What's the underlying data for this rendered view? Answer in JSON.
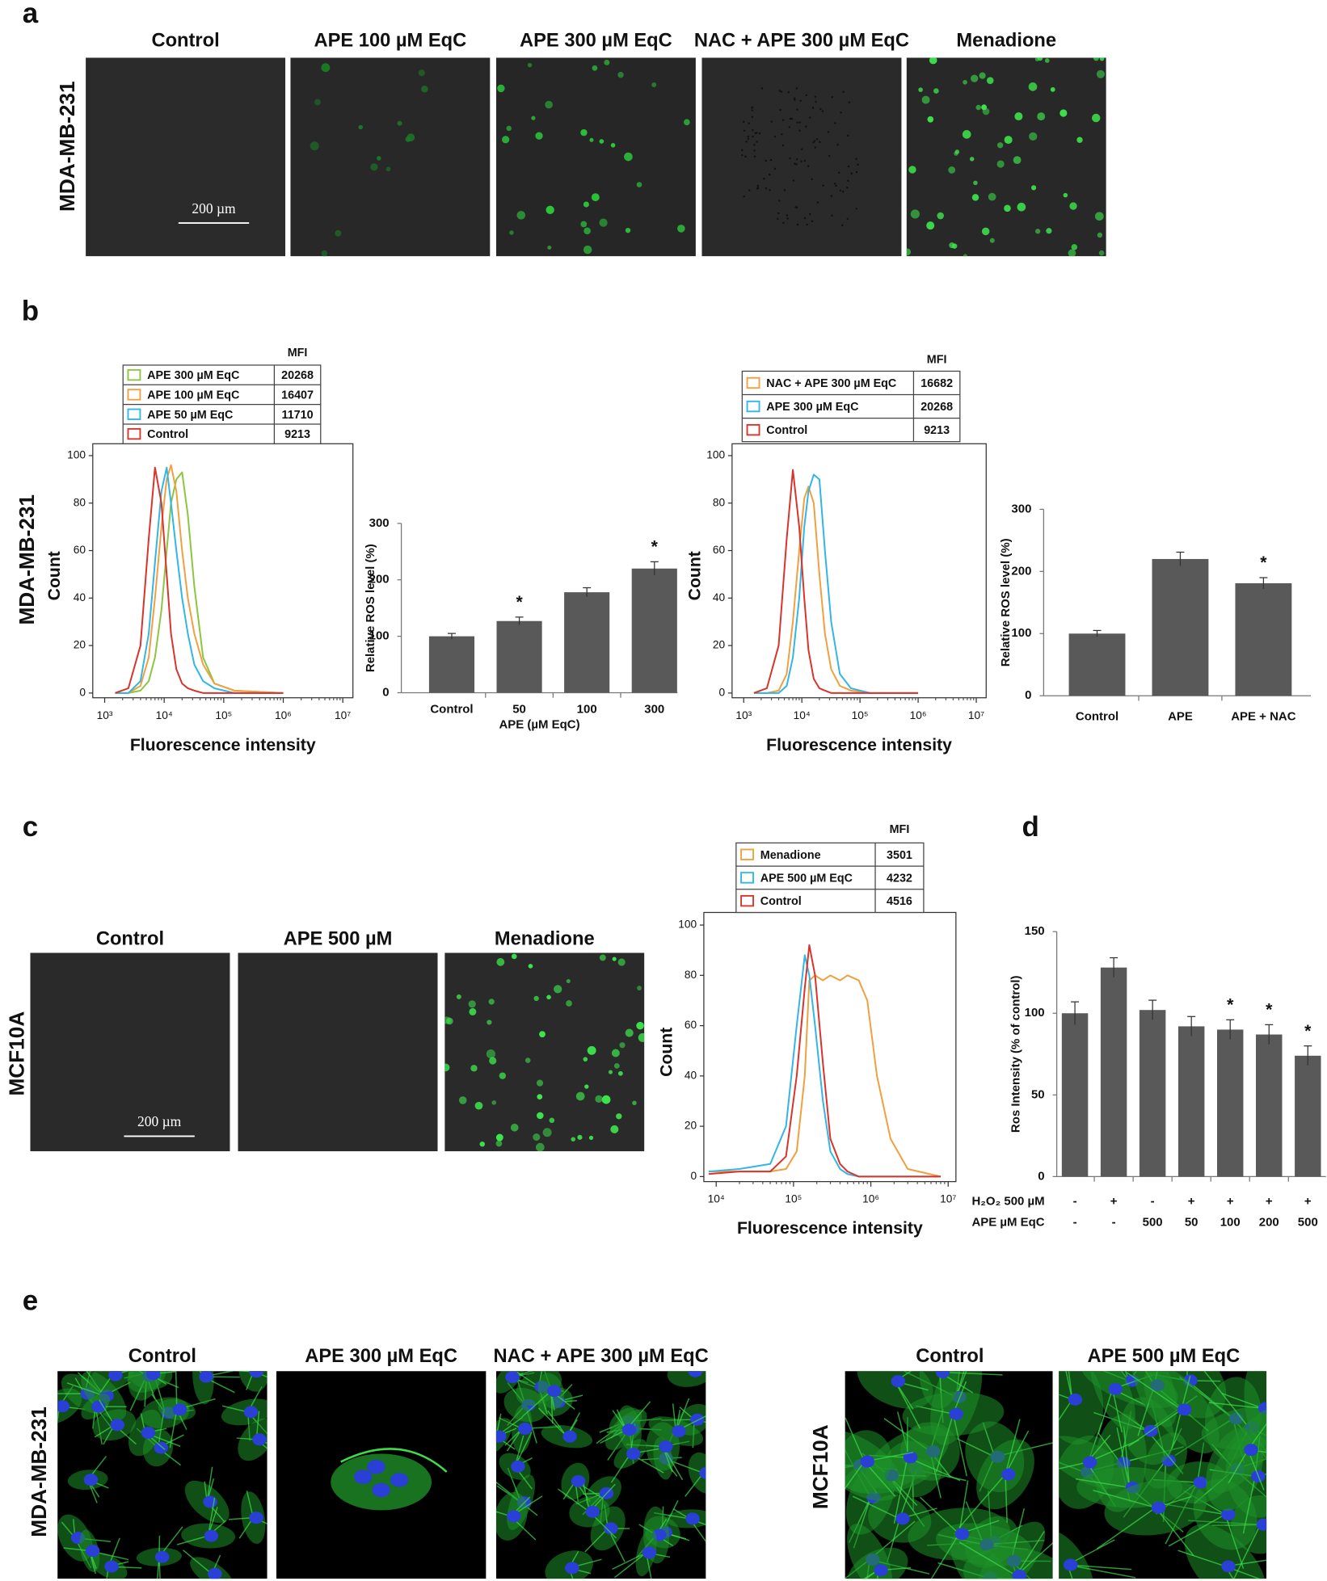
{
  "panel_labels": [
    "a",
    "b",
    "c",
    "d",
    "e"
  ],
  "panel_a": {
    "row_label": "MDA-MB-231",
    "columns": [
      "Control",
      "APE 100 µM EqC",
      "APE 300 µM EqC",
      "NAC + APE 300 µM EqC",
      "Menadione"
    ],
    "scale_bar": "200 µm"
  },
  "panel_b": {
    "row_label": "MDA-MB-231"
  },
  "panel_c": {
    "row_label": "MCF10A",
    "columns": [
      "Control",
      "APE 500 µM",
      "Menadione"
    ],
    "scale_bar": "200 µm"
  },
  "panel_e": {
    "groups": [
      {
        "row_label": "MDA-MB-231",
        "columns": [
          "Control",
          "APE 300 µM EqC",
          "NAC + APE 300 µM EqC"
        ]
      },
      {
        "row_label": "MCF10A",
        "columns": [
          "Control",
          "APE 500 µM EqC"
        ]
      }
    ]
  },
  "chart_data": [
    {
      "type": "line",
      "xscale": "log",
      "xlabel": "Fluorescence intensity",
      "ylabel": "Count",
      "mfi_header": "MFI",
      "x": [
        1500,
        2500,
        4000,
        5500,
        7000,
        9000,
        11000,
        13000,
        16000,
        20000,
        25000,
        32000,
        45000,
        70000,
        150000,
        1000000
      ],
      "xlim": [
        631,
        14800000
      ],
      "xticks": [
        {
          "value": 1000,
          "label": "10³"
        },
        {
          "value": 10000,
          "label": "10⁴"
        },
        {
          "value": 100000,
          "label": "10⁵"
        },
        {
          "value": 1000000,
          "label": "10⁶"
        },
        {
          "value": 10000000,
          "label": "10⁷"
        }
      ],
      "ylim": [
        -2,
        105
      ],
      "yticks": [
        0,
        20,
        40,
        60,
        80,
        100
      ],
      "series": [
        {
          "name": "APE 300 µM EqC",
          "color": "#8cc63f",
          "mfi": 20268,
          "values": [
            0,
            0,
            1,
            5,
            15,
            35,
            60,
            80,
            90,
            93,
            75,
            45,
            15,
            4,
            1,
            0
          ]
        },
        {
          "name": "APE 100 µM EqC",
          "color": "#f0a040",
          "mfi": 16407,
          "values": [
            0,
            0,
            3,
            15,
            40,
            70,
            90,
            96,
            85,
            60,
            40,
            25,
            12,
            4,
            1,
            0
          ]
        },
        {
          "name": "APE 50 µM EqC",
          "color": "#33b5e5",
          "mfi": 11710,
          "values": [
            0,
            0,
            5,
            25,
            55,
            85,
            95,
            80,
            60,
            40,
            25,
            12,
            5,
            2,
            0,
            0
          ]
        },
        {
          "name": "Control",
          "color": "#d9342b",
          "mfi": 9213,
          "values": [
            0,
            2,
            20,
            65,
            95,
            80,
            50,
            25,
            10,
            4,
            2,
            1,
            0,
            0,
            0,
            0
          ]
        }
      ]
    },
    {
      "type": "bar",
      "color": "#595959",
      "xlabel": "APE (µM EqC)",
      "ylabel": "Relative ROS level (%)",
      "categories": [
        "Control",
        "50",
        "100",
        "300"
      ],
      "values": [
        100,
        127,
        178,
        220
      ],
      "errors": [
        5,
        7,
        8,
        12
      ],
      "significance": [
        null,
        "*",
        null,
        "*"
      ],
      "ylim": [
        0,
        300
      ],
      "yticks": [
        0,
        100,
        200,
        300
      ]
    },
    {
      "type": "line",
      "xscale": "log",
      "xlabel": "Fluorescence intensity",
      "ylabel": "Count",
      "mfi_header": "MFI",
      "x": [
        1500,
        2500,
        4000,
        5500,
        7000,
        9000,
        11000,
        13000,
        16000,
        20000,
        25000,
        32000,
        45000,
        70000,
        150000,
        1000000
      ],
      "xlim": [
        631,
        14800000
      ],
      "xticks": [
        {
          "value": 1000,
          "label": "10³"
        },
        {
          "value": 10000,
          "label": "10⁴"
        },
        {
          "value": 100000,
          "label": "10⁵"
        },
        {
          "value": 1000000,
          "label": "10⁶"
        },
        {
          "value": 10000000,
          "label": "10⁷"
        }
      ],
      "ylim": [
        -2,
        105
      ],
      "yticks": [
        0,
        20,
        40,
        60,
        80,
        100
      ],
      "series": [
        {
          "name": "NAC + APE 300 µM EqC",
          "color": "#f0a040",
          "mfi": 16682,
          "values": [
            0,
            0,
            1,
            8,
            30,
            60,
            82,
            87,
            80,
            50,
            25,
            10,
            3,
            1,
            0,
            0
          ]
        },
        {
          "name": "APE 300 µM EqC",
          "color": "#33b5e5",
          "mfi": 20268,
          "values": [
            0,
            0,
            0,
            3,
            15,
            40,
            70,
            85,
            92,
            90,
            60,
            30,
            8,
            2,
            0,
            0
          ]
        },
        {
          "name": "Control",
          "color": "#d9342b",
          "mfi": 9213,
          "values": [
            0,
            2,
            20,
            65,
            94,
            70,
            40,
            18,
            6,
            2,
            1,
            0,
            0,
            0,
            0,
            0
          ]
        }
      ]
    },
    {
      "type": "bar",
      "color": "#595959",
      "ylabel": "Relative ROS level (%)",
      "categories": [
        "Control",
        "APE",
        "APE + NAC"
      ],
      "values": [
        100,
        220,
        181
      ],
      "errors": [
        5,
        11,
        9
      ],
      "significance": [
        null,
        null,
        "*"
      ],
      "ylim": [
        0,
        300
      ],
      "yticks": [
        0,
        100,
        200,
        300
      ]
    },
    {
      "type": "line",
      "xscale": "log",
      "xlabel": "Fluorescence intensity",
      "ylabel": "Count",
      "mfi_header": "MFI",
      "x": [
        8000,
        20000,
        50000,
        80000,
        110000,
        140000,
        160000,
        190000,
        240000,
        300000,
        400000,
        500000,
        700000,
        900000,
        1200000,
        1800000,
        3000000,
        8000000
      ],
      "xlim": [
        6920,
        12600000
      ],
      "xticks": [
        {
          "value": 10000,
          "label": "10⁴"
        },
        {
          "value": 100000,
          "label": "10⁵"
        },
        {
          "value": 1000000,
          "label": "10⁶"
        },
        {
          "value": 10000000,
          "label": "10⁷"
        }
      ],
      "ylim": [
        -2,
        105
      ],
      "yticks": [
        0,
        20,
        40,
        60,
        80,
        100
      ],
      "series": [
        {
          "name": "Menadione",
          "color": "#f0a040",
          "mfi": 3501,
          "values": [
            2,
            2,
            2,
            3,
            10,
            40,
            78,
            80,
            78,
            80,
            78,
            80,
            78,
            70,
            40,
            15,
            3,
            0
          ]
        },
        {
          "name": "APE 500 µM EqC",
          "color": "#33b5e5",
          "mfi": 4232,
          "values": [
            2,
            3,
            5,
            20,
            60,
            88,
            80,
            60,
            30,
            10,
            3,
            1,
            0,
            0,
            0,
            0,
            0,
            0
          ]
        },
        {
          "name": "Control",
          "color": "#d9342b",
          "mfi": 4516,
          "values": [
            1,
            2,
            2,
            8,
            40,
            75,
            92,
            80,
            45,
            15,
            5,
            2,
            0,
            0,
            0,
            0,
            0,
            0
          ]
        }
      ]
    },
    {
      "type": "bar",
      "color": "#595959",
      "ylabel": "Ros Intensity (% of control)",
      "category_rows": [
        {
          "label": "H₂O₂ 500 µM",
          "values": [
            "-",
            "+",
            "-",
            "+",
            "+",
            "+",
            "+"
          ]
        },
        {
          "label": "APE µM EqC",
          "values": [
            "-",
            "-",
            "500",
            "50",
            "100",
            "200",
            "500"
          ]
        }
      ],
      "values": [
        100,
        128,
        102,
        92,
        90,
        87,
        74
      ],
      "errors": [
        7,
        6,
        6,
        6,
        6,
        6,
        6
      ],
      "significance": [
        null,
        null,
        null,
        null,
        "*",
        "*",
        "*"
      ],
      "ylim": [
        0,
        150
      ],
      "yticks": [
        0,
        50,
        100,
        150
      ]
    }
  ]
}
